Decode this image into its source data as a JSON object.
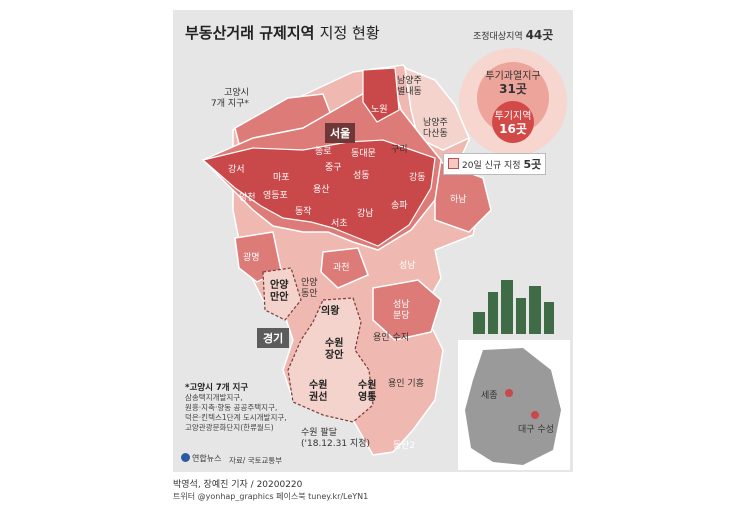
{
  "title": {
    "bold": "부동산거래 규제지역",
    "light": "지정 현황"
  },
  "legend": {
    "total_label": "조정대상지역",
    "total_count": "44곳",
    "overheat_label": "투기과열지구",
    "overheat_count": "31곳",
    "speculation_label": "투기지역",
    "speculation_count": "16곳",
    "new_label": "20일 신규 지정",
    "new_count": "5곳"
  },
  "regions": {
    "seoul": "서울",
    "gyeonggi": "경기",
    "goyang_note": "고양시\n7개 지구*",
    "namyangju_byeollae": "남양주\n별내동",
    "namyangju_dasan": "남양주\n다산동",
    "guri": "구리",
    "hanam": "하남",
    "gwacheon": "과천",
    "gwangmyeong": "광명",
    "anyang_manan": "안양\n만안",
    "anyang_dongan": "안양\n동안",
    "seongnam": "성남",
    "seongnam_bundang": "성남\n분당",
    "uiwang": "의왕",
    "suwon_jangan": "수원\n장안",
    "suwon_gwonseon": "수원\n권선",
    "suwon_yeongtong": "수원\n영통",
    "suwon_paldal": "수원 팔달\n('18.12.31 지정)",
    "yongin_suji": "용인 수지",
    "yongin_giheung": "용인 기흥",
    "dongtan2": "동탄2",
    "sejong": "세종",
    "daegu_suseong": "대구 수성"
  },
  "districts": [
    {
      "name": "노원"
    },
    {
      "name": "종로"
    },
    {
      "name": "동대문"
    },
    {
      "name": "중구"
    },
    {
      "name": "성동"
    },
    {
      "name": "강서"
    },
    {
      "name": "마포"
    },
    {
      "name": "용산"
    },
    {
      "name": "강동"
    },
    {
      "name": "양천"
    },
    {
      "name": "영등포"
    },
    {
      "name": "동작"
    },
    {
      "name": "강남"
    },
    {
      "name": "송파"
    },
    {
      "name": "서초"
    }
  ],
  "note": {
    "head": "*고양시 7개 지구",
    "lines": [
      "삼송택지개발지구,",
      "원흥·지축·향동 공공주택지구,",
      "덕은·킨텍스1단계 도시개발지구,",
      "고양관광문화단지(한류월드)"
    ]
  },
  "footer": {
    "logo": "연합뉴스",
    "source": "자료/ 국토교통부",
    "credit": "박영석, 장예진 기자 / 20200220",
    "social": "트위터 @yonhap_graphics  페이스북 tuney.kr/LeYN1"
  },
  "colors": {
    "speculation": "#c9484a",
    "overheat": "#dc7b78",
    "adjusted": "#efb8b0",
    "new": "#f3d3cc",
    "background": "#e6e6e6"
  }
}
